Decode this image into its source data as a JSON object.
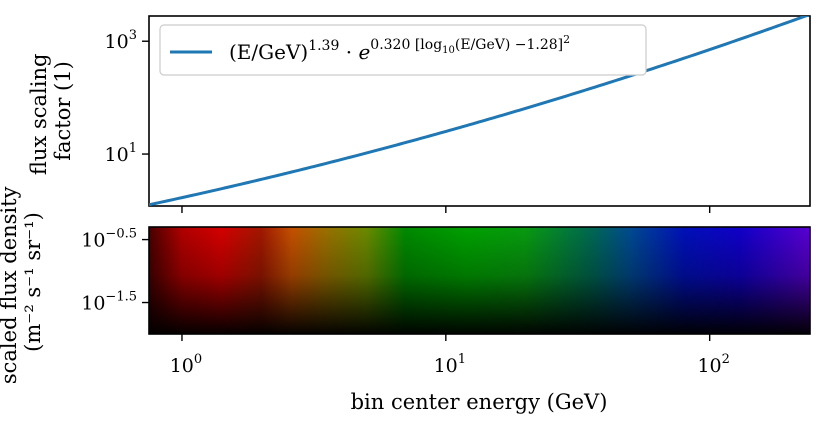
{
  "chart_data": [
    {
      "type": "line",
      "panel": "top",
      "ylabel_lines": [
        "flux scaling",
        "factor (1)"
      ],
      "yscale": "log",
      "ylim": [
        1.2,
        2800
      ],
      "y_ticks": [
        {
          "value": 10,
          "base": "10",
          "exp": "1"
        },
        {
          "value": 1000,
          "base": "10",
          "exp": "3"
        }
      ],
      "xscale": "log",
      "xlim": [
        0.75,
        240
      ],
      "legend_position": "top-left",
      "legend": {
        "prefix": "(E/GeV)",
        "prefix_exp": "1.39",
        "mid": " · ",
        "e": "e",
        "e_exp": "0.320 [log",
        "e_exp_sub": "10",
        "e_exp_tail": "(E/GeV) −1.28]",
        "sq": "2"
      },
      "series": [
        {
          "color": "#1f77b4",
          "formula": {
            "a": 1.39,
            "b": 0.32,
            "c": 1.28
          },
          "x": [
            0.75,
            1,
            1.5,
            2,
            3,
            5,
            7,
            10,
            15,
            20,
            30,
            50,
            70,
            100,
            150,
            200,
            240
          ]
        }
      ]
    },
    {
      "type": "heatmap",
      "panel": "bottom",
      "ylabel_lines": [
        "scaled flux density",
        "(m⁻² s⁻¹ sr⁻¹)"
      ],
      "yscale": "log",
      "ylim": [
        -2.0,
        -0.3
      ],
      "y_ticks": [
        {
          "value": -0.5,
          "base": "10",
          "exp": "−0.5"
        },
        {
          "value": -1.5,
          "base": "10",
          "exp": "−1.5"
        }
      ],
      "xscale": "log",
      "xlim": [
        0.75,
        240
      ],
      "x_ticks": [
        {
          "value": 1,
          "base": "10",
          "exp": "0"
        },
        {
          "value": 10,
          "base": "10",
          "exp": "1"
        },
        {
          "value": 100,
          "base": "10",
          "exp": "2"
        }
      ],
      "xlabel": "bin center energy (GeV)",
      "color_stops": [
        {
          "x": 0.75,
          "color": "#4a0000"
        },
        {
          "x": 1.0,
          "color": "#b00000"
        },
        {
          "x": 1.4,
          "color": "#d40000"
        },
        {
          "x": 2.0,
          "color": "#a01800"
        },
        {
          "x": 2.6,
          "color": "#c45000"
        },
        {
          "x": 3.5,
          "color": "#9a7000"
        },
        {
          "x": 5.0,
          "color": "#6a8a00"
        },
        {
          "x": 7.0,
          "color": "#008a00"
        },
        {
          "x": 12.0,
          "color": "#00a000"
        },
        {
          "x": 20.0,
          "color": "#089a10"
        },
        {
          "x": 35.0,
          "color": "#006a50"
        },
        {
          "x": 50.0,
          "color": "#004a90"
        },
        {
          "x": 80.0,
          "color": "#0010b8"
        },
        {
          "x": 130.0,
          "color": "#1000c8"
        },
        {
          "x": 240.0,
          "color": "#5a00d0"
        }
      ]
    }
  ]
}
